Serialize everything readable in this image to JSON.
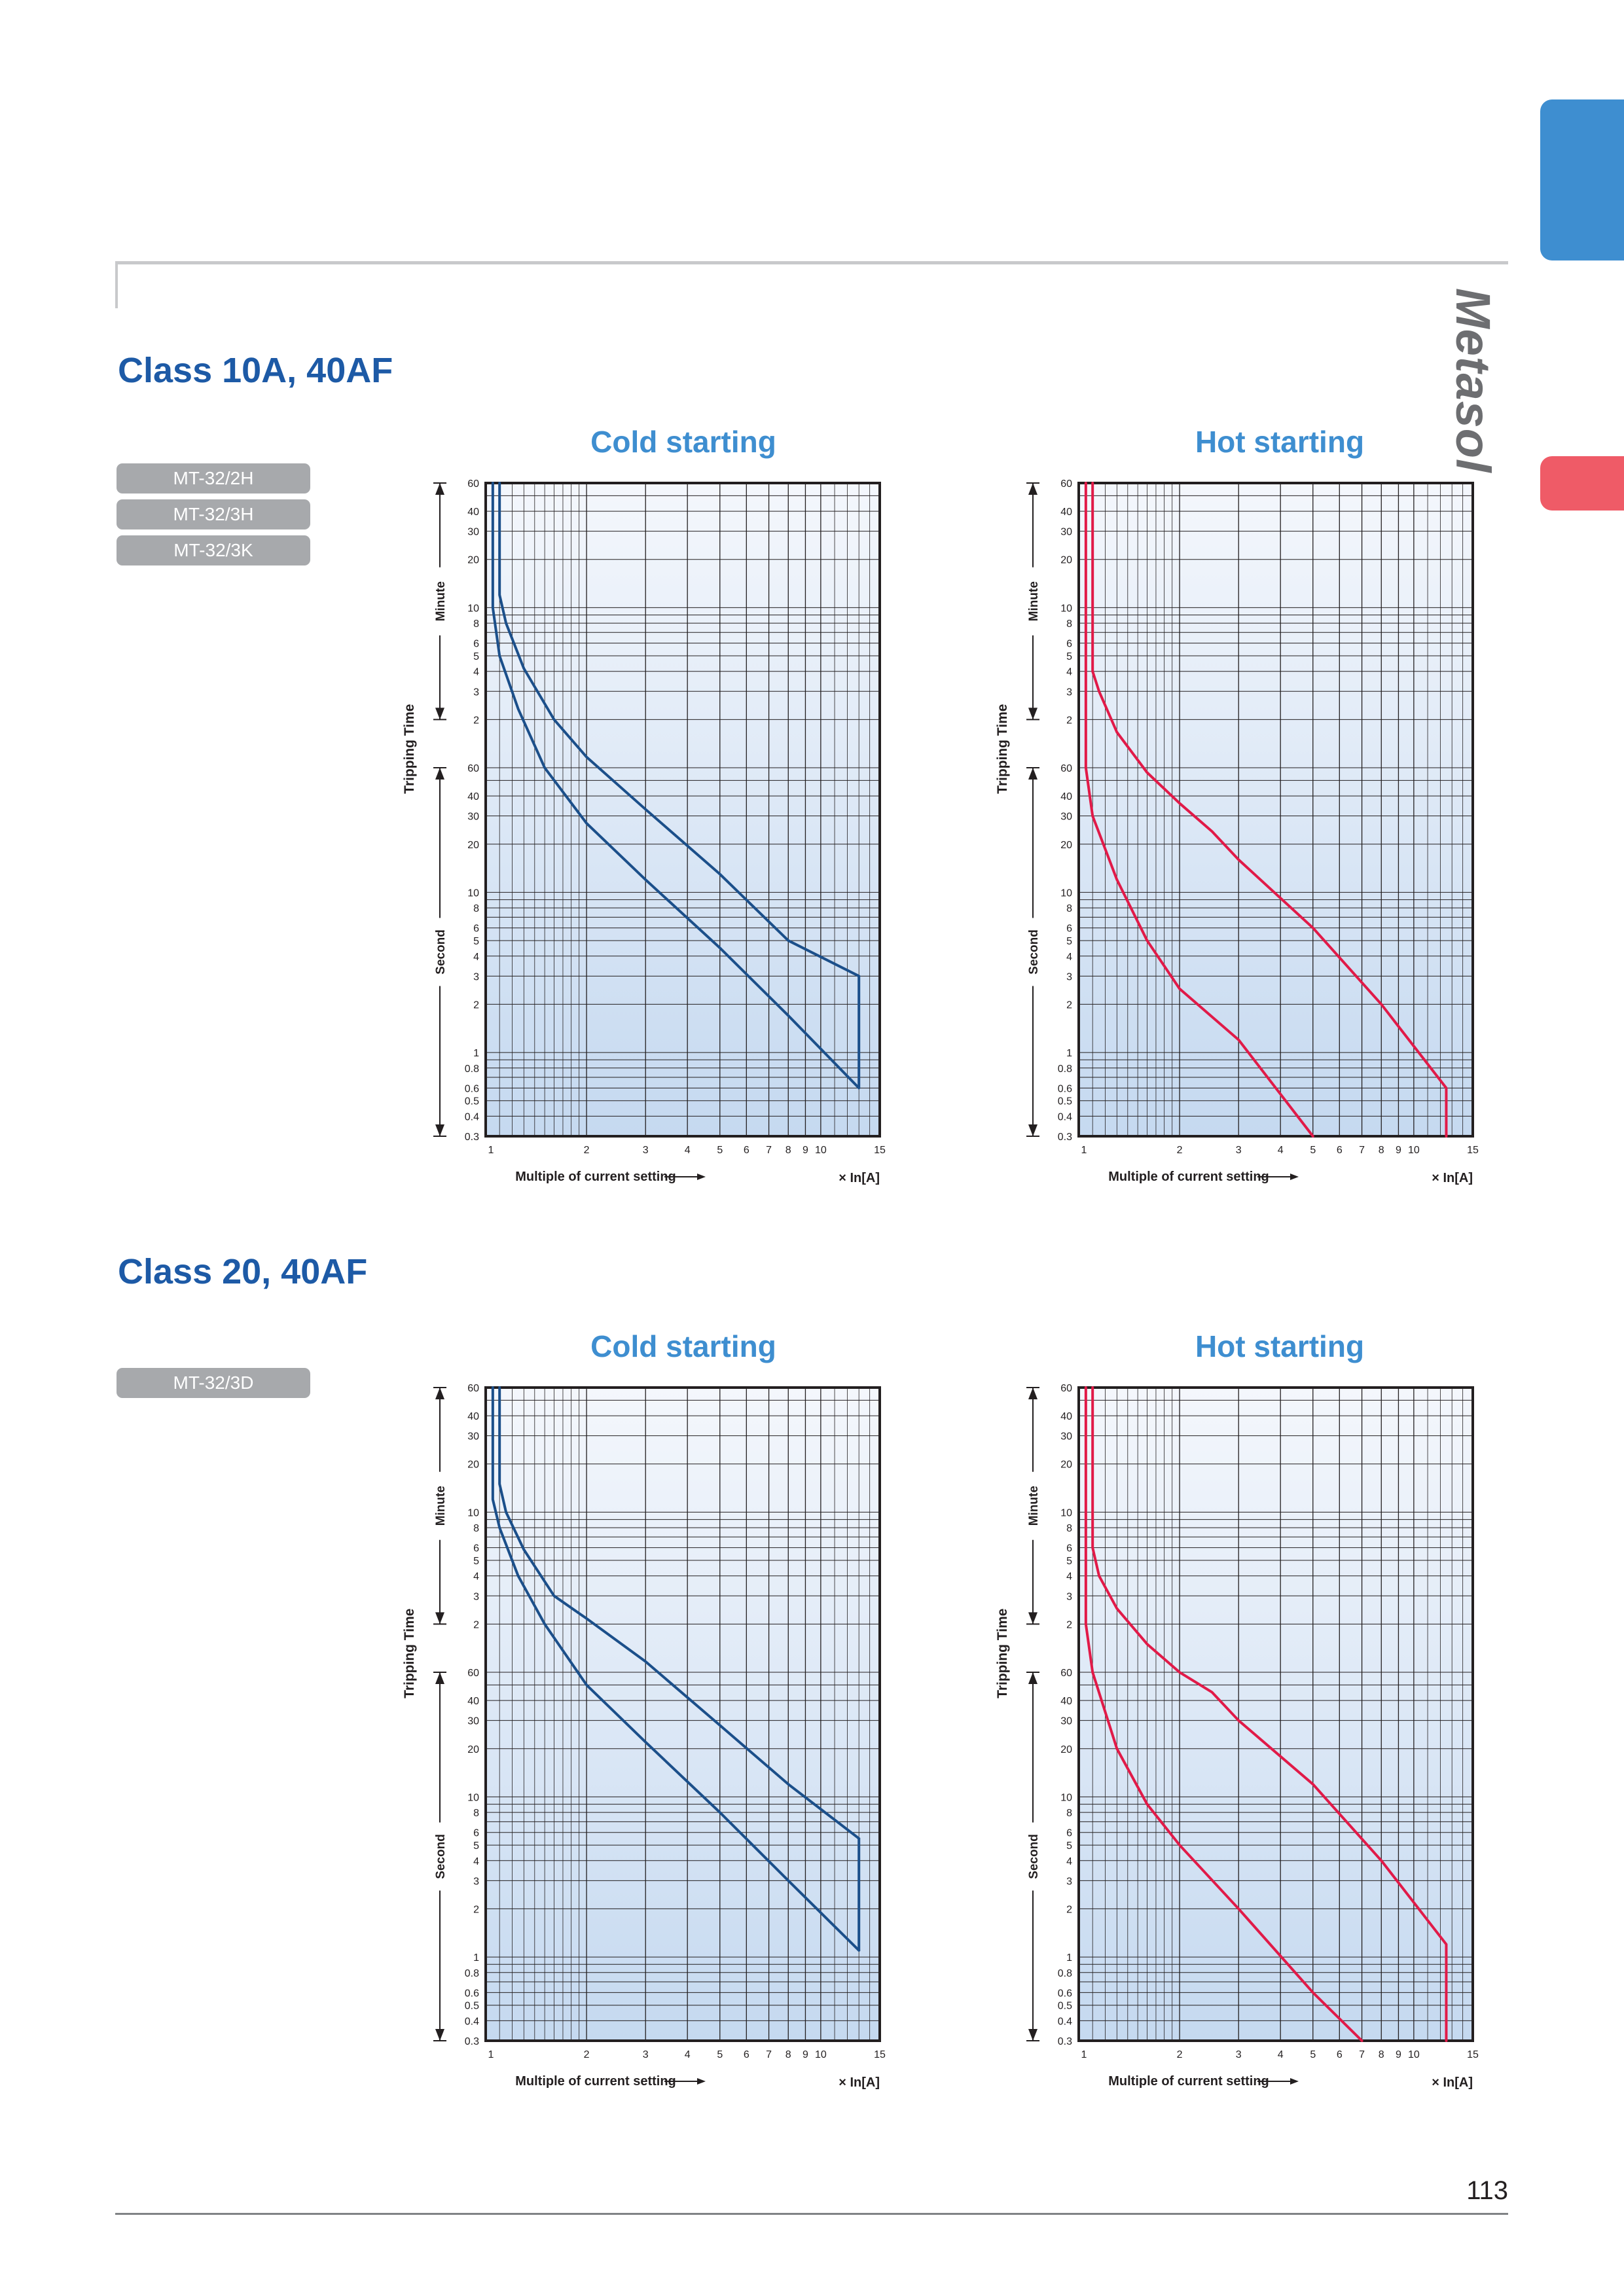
{
  "brand": "Metasol",
  "page_number": "113",
  "sections": [
    {
      "title": "Class 10A, 40AF",
      "models": [
        "MT-32/2H",
        "MT-32/3H",
        "MT-32/3K"
      ]
    },
    {
      "title": "Class 20, 40AF",
      "models": [
        "MT-32/3D"
      ]
    }
  ],
  "axis_text": {
    "ylabel": "Tripping Time",
    "minute_label": "Minute",
    "second_label": "Second",
    "xlabel": "Multiple of current setting",
    "xunit": "× In[A]"
  },
  "colors": {
    "cold": "#1b4f8a",
    "hot": "#e11a48",
    "plot_top": "#f4f7fc",
    "plot_bottom": "#c5d9f0"
  },
  "chart_data": [
    {
      "type": "line",
      "title": "Cold starting",
      "section": "Class 10A, 40AF",
      "xscale": "log",
      "yscale": "log",
      "xlim": [
        1,
        15
      ],
      "ylim_seconds": [
        0.3,
        3600
      ],
      "x_ticks": [
        1,
        2,
        3,
        4,
        5,
        6,
        7,
        8,
        9,
        10,
        15
      ],
      "y_ticks_minute": [
        60,
        40,
        30,
        20,
        10,
        8,
        6,
        5,
        4,
        3,
        2
      ],
      "y_ticks_second": [
        60,
        40,
        30,
        20,
        10,
        8,
        6,
        5,
        4,
        3,
        2,
        1,
        0.8,
        0.6,
        0.5,
        0.4,
        0.3
      ],
      "grid": true,
      "series": [
        {
          "x": [
            1.1,
            1.1,
            1.15,
            1.3,
            1.6,
            2.0,
            3.0,
            5.0,
            8.0,
            13.0,
            13.0
          ],
          "y_seconds": [
            3600,
            720,
            480,
            250,
            120,
            70,
            33,
            13,
            5,
            3,
            3
          ]
        },
        {
          "x": [
            1.05,
            1.05,
            1.1,
            1.25,
            1.5,
            2.0,
            3.0,
            5.0,
            8.0,
            13.0,
            13.0
          ],
          "y_seconds": [
            3600,
            600,
            300,
            140,
            60,
            27,
            12,
            4.5,
            1.7,
            0.6,
            0.6
          ]
        }
      ],
      "closing_segment_x": 13.0,
      "closing_segment_y_seconds": [
        0.6,
        3
      ]
    },
    {
      "type": "line",
      "title": "Hot starting",
      "section": "Class 10A, 40AF",
      "xscale": "log",
      "yscale": "log",
      "xlim": [
        1,
        15
      ],
      "ylim_seconds": [
        0.3,
        3600
      ],
      "x_ticks": [
        1,
        2,
        3,
        4,
        5,
        6,
        7,
        8,
        9,
        10,
        15
      ],
      "y_ticks_minute": [
        60,
        40,
        30,
        20,
        10,
        8,
        6,
        5,
        4,
        3,
        2
      ],
      "y_ticks_second": [
        60,
        40,
        30,
        20,
        10,
        8,
        6,
        5,
        4,
        3,
        2,
        1,
        0.8,
        0.6,
        0.5,
        0.4,
        0.3
      ],
      "grid": true,
      "series": [
        {
          "x": [
            1.1,
            1.1,
            1.15,
            1.3,
            1.6,
            2.0,
            2.5,
            3.0,
            5.0,
            8.0,
            12.5,
            12.5
          ],
          "y_seconds": [
            3600,
            240,
            180,
            100,
            56,
            36,
            24,
            16,
            6,
            2,
            0.6,
            0.3
          ]
        },
        {
          "x": [
            1.05,
            1.05,
            1.1,
            1.3,
            1.6,
            2.0,
            3.0,
            5.0
          ],
          "y_seconds": [
            3600,
            60,
            30,
            12,
            5,
            2.5,
            1.2,
            0.3
          ]
        }
      ]
    },
    {
      "type": "line",
      "title": "Cold starting",
      "section": "Class 20, 40AF",
      "xscale": "log",
      "yscale": "log",
      "xlim": [
        1,
        15
      ],
      "ylim_seconds": [
        0.3,
        3600
      ],
      "x_ticks": [
        1,
        2,
        3,
        4,
        5,
        6,
        7,
        8,
        9,
        10,
        15
      ],
      "y_ticks_minute": [
        60,
        40,
        30,
        20,
        10,
        8,
        6,
        5,
        4,
        3,
        2
      ],
      "y_ticks_second": [
        60,
        40,
        30,
        20,
        10,
        8,
        6,
        5,
        4,
        3,
        2,
        1,
        0.8,
        0.6,
        0.5,
        0.4,
        0.3
      ],
      "grid": true,
      "series": [
        {
          "x": [
            1.1,
            1.1,
            1.15,
            1.3,
            1.6,
            2.0,
            3.0,
            5.0,
            8.0,
            13.0,
            13.0
          ],
          "y_seconds": [
            3600,
            900,
            600,
            350,
            180,
            130,
            70,
            28,
            12,
            5.5,
            5.5
          ]
        },
        {
          "x": [
            1.05,
            1.05,
            1.1,
            1.25,
            1.5,
            2.0,
            3.0,
            5.0,
            8.0,
            13.0,
            13.0
          ],
          "y_seconds": [
            3600,
            720,
            480,
            240,
            120,
            50,
            22,
            8,
            3,
            1.1,
            1.1
          ]
        }
      ],
      "closing_segment_x": 13.0,
      "closing_segment_y_seconds": [
        1.1,
        5.5
      ]
    },
    {
      "type": "line",
      "title": "Hot starting",
      "section": "Class 20, 40AF",
      "xscale": "log",
      "yscale": "log",
      "xlim": [
        1,
        15
      ],
      "ylim_seconds": [
        0.3,
        3600
      ],
      "x_ticks": [
        1,
        2,
        3,
        4,
        5,
        6,
        7,
        8,
        9,
        10,
        15
      ],
      "y_ticks_minute": [
        60,
        40,
        30,
        20,
        10,
        8,
        6,
        5,
        4,
        3,
        2
      ],
      "y_ticks_second": [
        60,
        40,
        30,
        20,
        10,
        8,
        6,
        5,
        4,
        3,
        2,
        1,
        0.8,
        0.6,
        0.5,
        0.4,
        0.3
      ],
      "grid": true,
      "series": [
        {
          "x": [
            1.1,
            1.1,
            1.15,
            1.3,
            1.6,
            2.0,
            2.5,
            3.0,
            5.0,
            8.0,
            12.5,
            12.5
          ],
          "y_seconds": [
            3600,
            360,
            240,
            150,
            90,
            60,
            45,
            30,
            12,
            4,
            1.2,
            0.3
          ]
        },
        {
          "x": [
            1.05,
            1.05,
            1.1,
            1.3,
            1.6,
            2.0,
            3.0,
            5.0,
            7.0
          ],
          "y_seconds": [
            3600,
            120,
            60,
            20,
            9,
            5,
            2,
            0.6,
            0.3
          ]
        }
      ]
    }
  ]
}
